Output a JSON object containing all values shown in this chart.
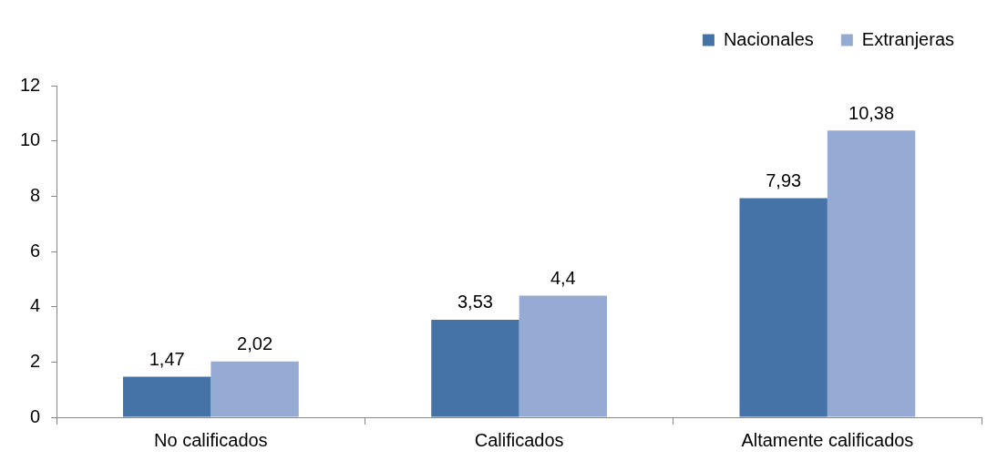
{
  "chart_data": {
    "type": "bar",
    "categories": [
      "No calificados",
      "Calificados",
      "Altamente calificados"
    ],
    "series": [
      {
        "name": "Nacionales",
        "color": "#4573a7",
        "values": [
          1.47,
          3.53,
          7.93
        ],
        "value_labels": [
          "1,47",
          "3,53",
          "7,93"
        ]
      },
      {
        "name": "Extranjeras",
        "color": "#96abd4",
        "values": [
          2.02,
          4.4,
          10.38
        ],
        "value_labels": [
          "2,02",
          "4,4",
          "10,38"
        ]
      }
    ],
    "ylim": [
      0,
      12
    ],
    "yticks": [
      0,
      2,
      4,
      6,
      8,
      10,
      12
    ],
    "grid": false,
    "legend": "top right"
  }
}
